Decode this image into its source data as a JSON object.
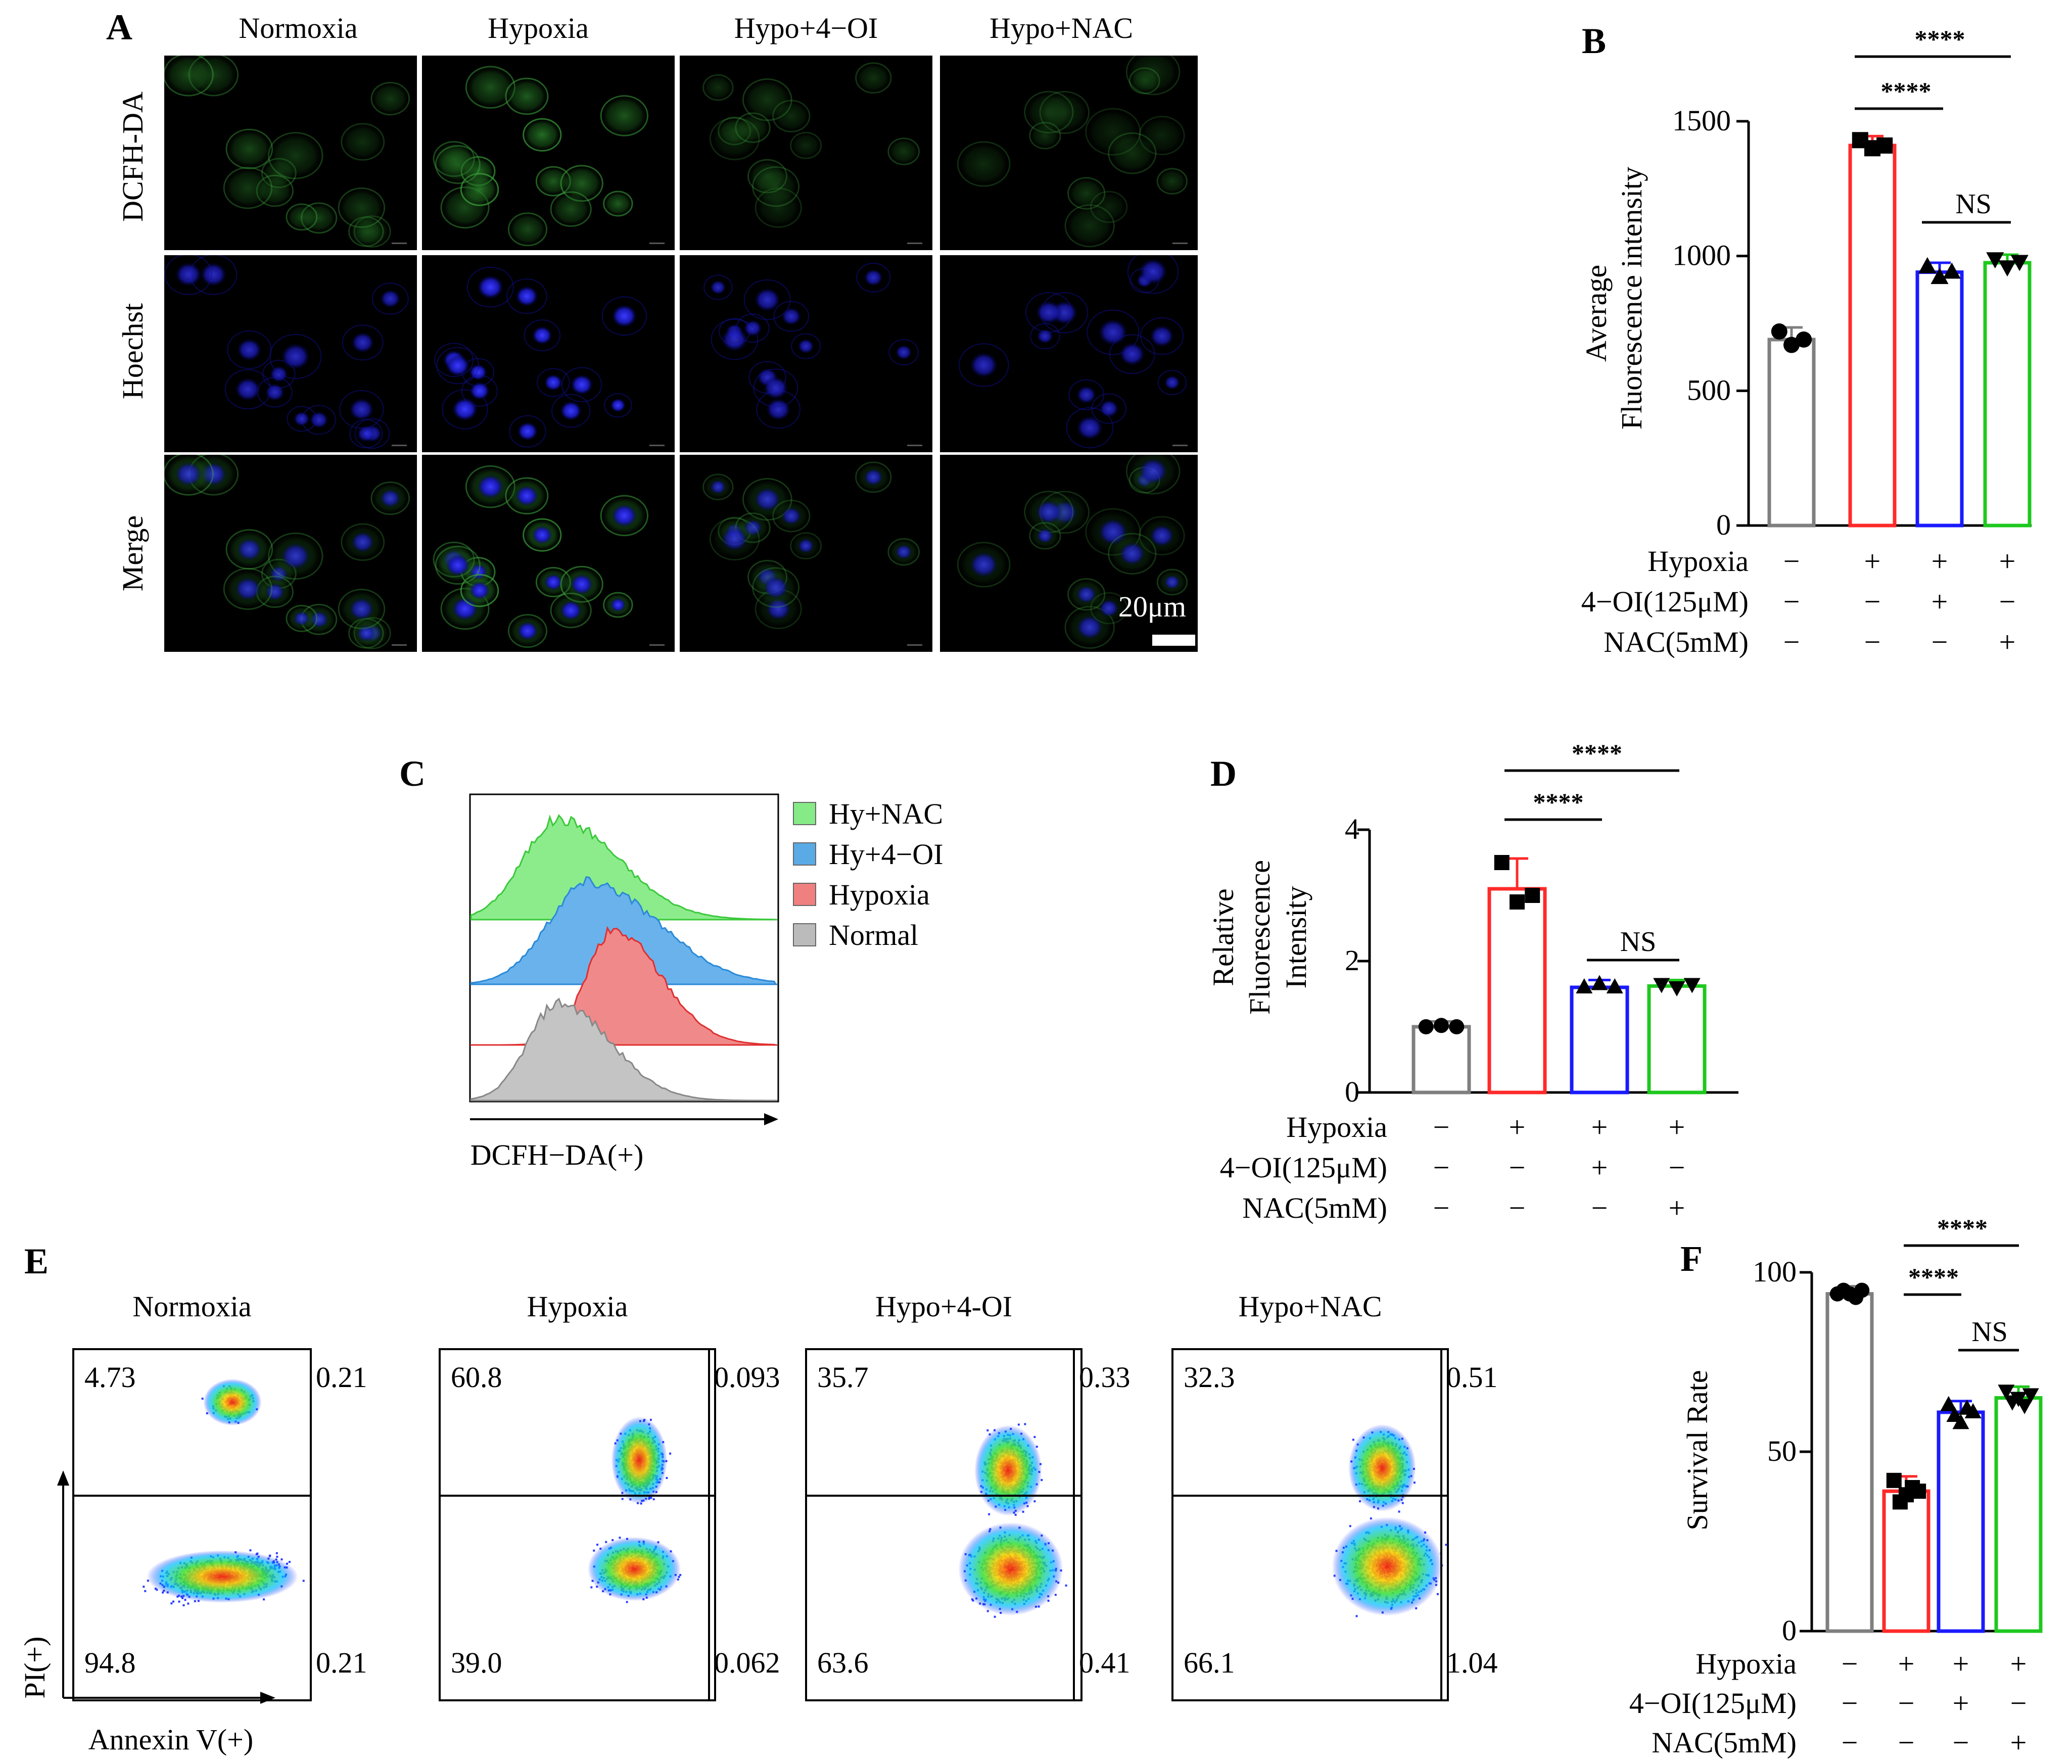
{
  "panel_labels": {
    "A": "A",
    "B": "B",
    "C": "C",
    "D": "D",
    "E": "E",
    "F": "F"
  },
  "panelA": {
    "columns": [
      "Normoxia",
      "Hypoxia",
      "Hypo+4−OI",
      "Hypo+NAC"
    ],
    "rows": [
      "DCFH-DA",
      "Hoechst",
      "Merge"
    ],
    "scalebar": "20μm"
  },
  "treatment_labels": {
    "hypoxia": "Hypoxia",
    "oi": "4−OI(125μM)",
    "nac": "NAC(5mM)"
  },
  "treatment_signs": {
    "hypoxia": [
      "−",
      "+",
      "+",
      "+"
    ],
    "oi": [
      "−",
      "−",
      "+",
      "−"
    ],
    "nac": [
      "−",
      "−",
      "−",
      "+"
    ]
  },
  "colors": {
    "normoxia": "#7f7f7f",
    "hypoxia": "#ff2a2a",
    "oi": "#1a1aff",
    "nac": "#1ec81e"
  },
  "chart_data": [
    {
      "panel": "B",
      "type": "bar",
      "ylabel_line1": "Average",
      "ylabel_line2": "Fluorescence intensity",
      "ylim": [
        0,
        1500
      ],
      "yticks": [
        "0",
        "500",
        "1000",
        "1500"
      ],
      "values": [
        690,
        1410,
        940,
        975
      ],
      "points": [
        [
          720,
          670,
          690
        ],
        [
          1430,
          1400,
          1410
        ],
        [
          960,
          920,
          940
        ],
        [
          990,
          960,
          980
        ]
      ],
      "sig": [
        {
          "from": 1,
          "to": 3,
          "label": "****"
        },
        {
          "from": 1,
          "to": 2,
          "label": "****"
        },
        {
          "from": 2,
          "to": 3,
          "label": "NS"
        }
      ]
    },
    {
      "panel": "D",
      "type": "bar",
      "ylabel_line1": "Relative",
      "ylabel_line2": "Fluorescence",
      "ylabel_line3": "Intensity",
      "ylim": [
        0,
        4
      ],
      "yticks": [
        "0",
        "2",
        "4"
      ],
      "values": [
        1.0,
        3.1,
        1.6,
        1.62
      ],
      "points": [
        [
          1.0,
          1.02,
          1.0
        ],
        [
          3.5,
          2.9,
          3.0
        ],
        [
          1.6,
          1.65,
          1.6
        ],
        [
          1.65,
          1.6,
          1.65
        ]
      ],
      "sig": [
        {
          "from": 1,
          "to": 3,
          "label": "****"
        },
        {
          "from": 1,
          "to": 2,
          "label": "****"
        },
        {
          "from": 2,
          "to": 3,
          "label": "NS"
        }
      ]
    },
    {
      "panel": "F",
      "type": "bar",
      "ylabel": "Survival Rate",
      "ylim": [
        0,
        100
      ],
      "yticks": [
        "0",
        "50",
        "100"
      ],
      "values": [
        94,
        39,
        61,
        65
      ],
      "points": [
        [
          94,
          95,
          94,
          93,
          95
        ],
        [
          42,
          36,
          38,
          40,
          39
        ],
        [
          63,
          60,
          58,
          62,
          61
        ],
        [
          67,
          64,
          65,
          63,
          66
        ]
      ],
      "sig": [
        {
          "from": 1,
          "to": 3,
          "label": "****"
        },
        {
          "from": 1,
          "to": 2,
          "label": "****"
        },
        {
          "from": 2,
          "to": 3,
          "label": "NS"
        }
      ]
    },
    {
      "panel": "C",
      "type": "area",
      "xlabel": "DCFH−DA(+)",
      "legend": [
        "Hy+NAC",
        "Hy+4−OI",
        "Hypoxia",
        "Normal"
      ],
      "legend_colors": [
        "#86ea86",
        "#5aaae6",
        "#f08080",
        "#bbbbbb"
      ]
    }
  ],
  "panelE": {
    "titles": [
      "Normoxia",
      "Hypoxia",
      "Hypo+4-OI",
      "Hypo+NAC"
    ],
    "quadrants": [
      {
        "ul": "4.73",
        "ur": "0.21",
        "ll": "94.8",
        "lr": "0.21"
      },
      {
        "ul": "60.8",
        "ur": "0.093",
        "ll": "39.0",
        "lr": "0.062"
      },
      {
        "ul": "35.7",
        "ur": "0.33",
        "ll": "63.6",
        "lr": "0.41"
      },
      {
        "ul": "32.3",
        "ur": "0.51",
        "ll": "66.1",
        "lr": "1.04"
      }
    ],
    "yaxis": "PI(+)",
    "xaxis": "Annexin V(+)"
  }
}
